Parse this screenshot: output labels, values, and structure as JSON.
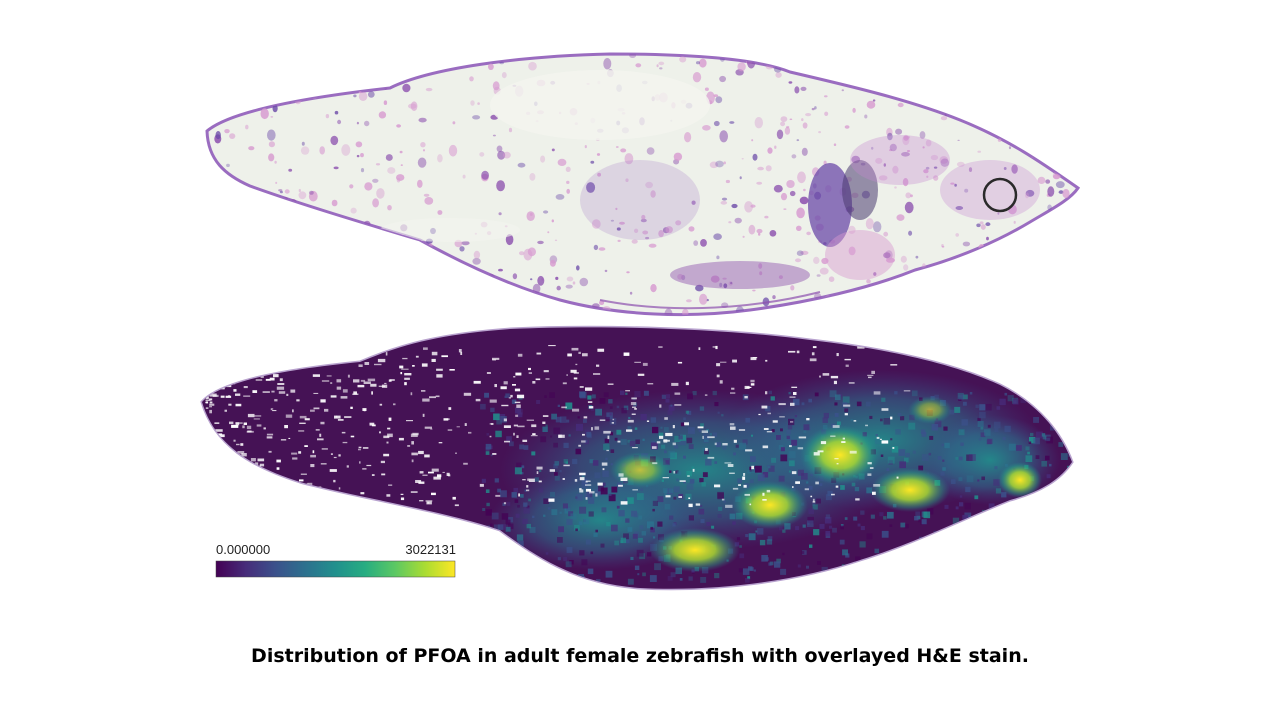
{
  "figure": {
    "top_panel": "H&E stained section of adult female zebrafish",
    "bottom_panel": "PFOA distribution heatmap overlay",
    "colors": {
      "tissue_pink": "#d79ad0",
      "tissue_purple": "#8b4fae",
      "dense_violet": "#6b4aa8",
      "slide_background": "#eef1ea",
      "outline": "#9a6cc0"
    },
    "colormap": {
      "name": "viridis",
      "stops": [
        "#440154",
        "#472c7a",
        "#3b518b",
        "#2c718e",
        "#21908d",
        "#27ad81",
        "#5cc863",
        "#aadc32",
        "#fde725"
      ]
    }
  },
  "colorbar": {
    "min_label": "0.000000",
    "max_label": "3022131"
  },
  "caption": "Distribution of PFOA in adult female zebrafish with overlayed H&E stain."
}
